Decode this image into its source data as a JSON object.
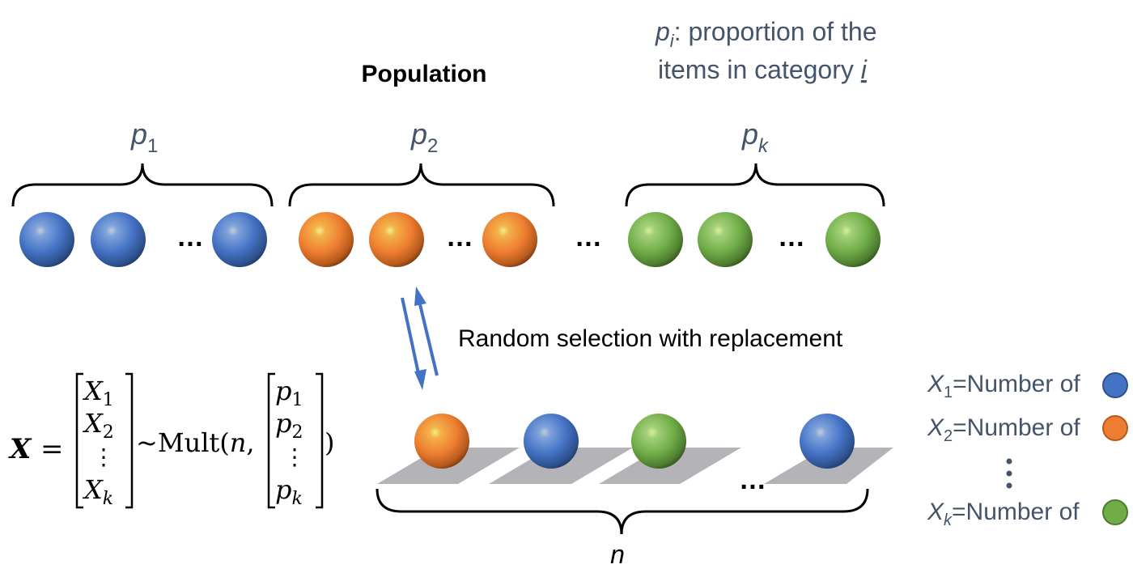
{
  "title": "Population",
  "note": {
    "var": "p",
    "sub": "i",
    "line1": ": proportion of the",
    "line2_prefix": "items in category ",
    "line2_var": "i"
  },
  "groups": [
    {
      "var": "p",
      "sub": "1",
      "color": "#4472c4"
    },
    {
      "var": "p",
      "sub": "2",
      "color": "#ed7d31"
    },
    {
      "var": "p",
      "sub": "k",
      "color": "#70ad47"
    }
  ],
  "ellipsis": "…",
  "vdots": "⋮",
  "selection_label": "Random selection with replacement",
  "sample_size_label": "n",
  "formula": {
    "lhs": "X",
    "equals": "=",
    "X1": "X",
    "X1_sub": "1",
    "X2": "X",
    "X2_sub": "2",
    "Xk": "X",
    "Xk_sub": "k",
    "tilde_mult": "~Mult(",
    "n": "n",
    "comma": ",",
    "p1": "p",
    "p1_sub": "1",
    "p2": "p",
    "p2_sub": "2",
    "pk": "p",
    "pk_sub": "k",
    "close": ")"
  },
  "legend": [
    {
      "var": "X",
      "sub": "1",
      "text": "=Number of",
      "color": "#4472c4"
    },
    {
      "var": "X",
      "sub": "2",
      "text": "=Number of",
      "color": "#ed7d31"
    },
    {
      "var": "X",
      "sub": "k",
      "text": "=Number of",
      "color": "#70ad47"
    }
  ],
  "colors": {
    "blue": "#4472c4",
    "orange": "#ed7d31",
    "green": "#70ad47",
    "text_blue": "#44546a",
    "tile": "#b4b4b8",
    "arrow": "#4472c4"
  }
}
